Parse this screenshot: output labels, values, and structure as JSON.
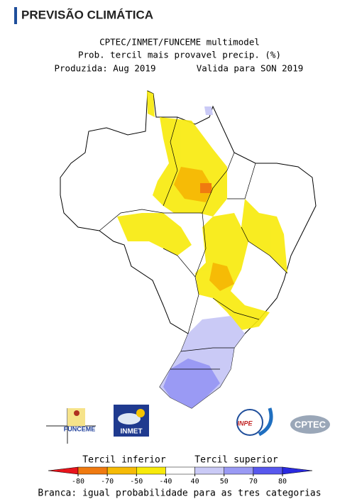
{
  "header": {
    "title": "PREVISÃO CLIMÁTICA"
  },
  "map": {
    "line1": "CPTEC/INMET/FUNCEME multimodel",
    "line2": "Prob. tercil mais provavel precip. (%)",
    "produced": "Produzida: Aug 2019",
    "valid": "Valida para SON 2019"
  },
  "logos": [
    "FUNCEME",
    "INMET",
    "INPE",
    "CPTEC"
  ],
  "legend": {
    "lower_label": "Tercil inferior",
    "upper_label": "Tercil superior",
    "ticks": [
      -80,
      -70,
      -50,
      -40,
      40,
      50,
      70,
      80
    ],
    "colors": [
      "#e8141c",
      "#f07a10",
      "#f6bb06",
      "#f8ea0a",
      "#ffffff",
      "#cacaf6",
      "#9a9af4",
      "#5858ee",
      "#2a2ae0"
    ],
    "note": "Branca: igual probabilidade para as tres categorias"
  }
}
